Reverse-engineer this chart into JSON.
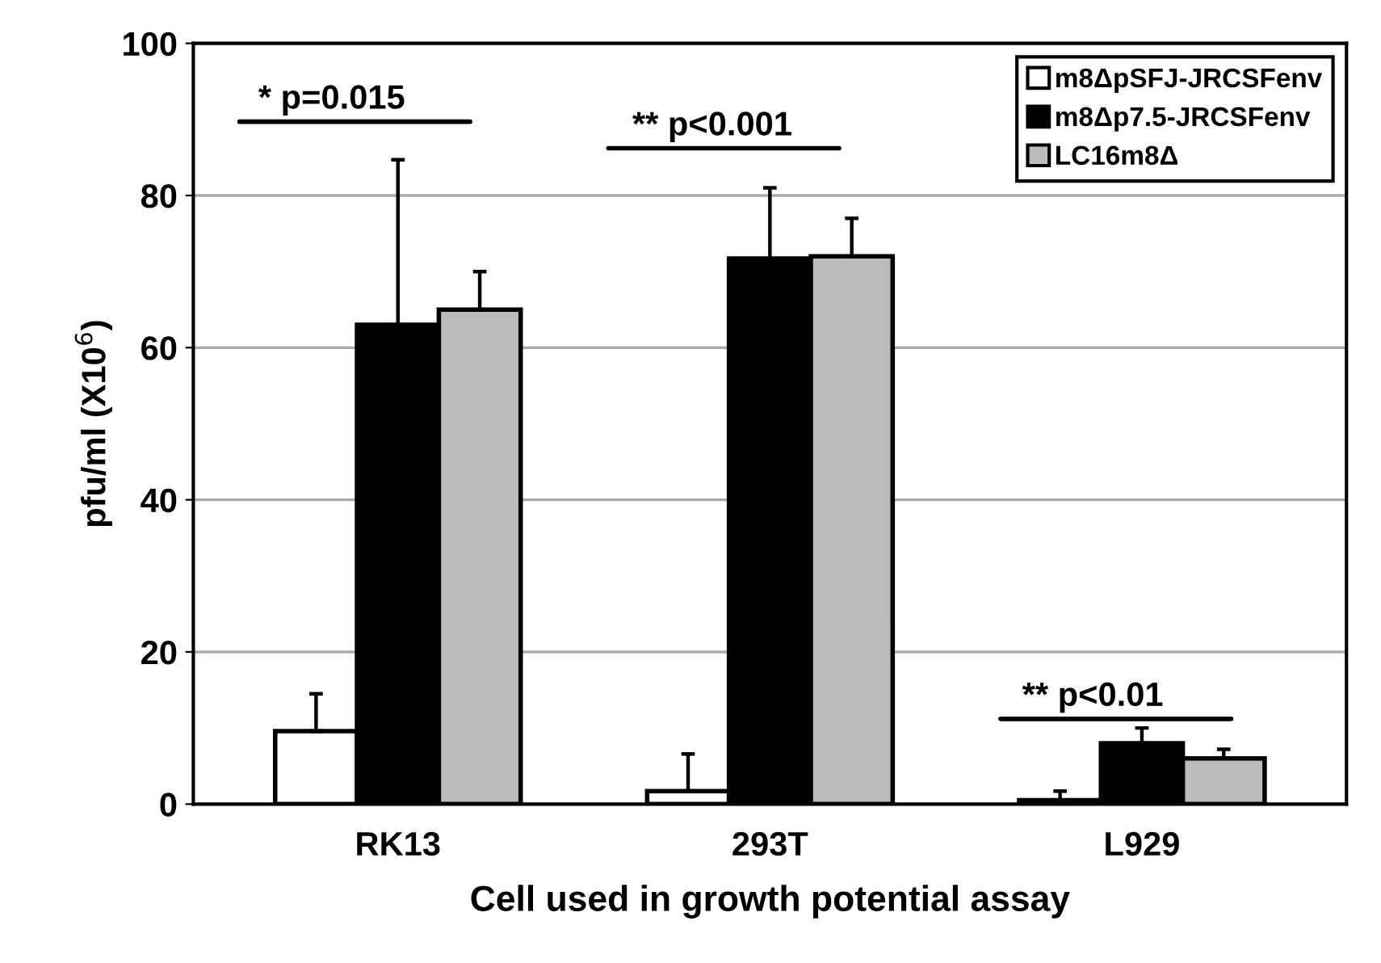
{
  "chart_data": {
    "type": "bar",
    "xlabel": "Cell used in growth potential assay",
    "ylabel": "pfu/ml (X10$^{6}$)",
    "categories": [
      "RK13",
      "293T",
      "L929"
    ],
    "series": [
      {
        "name": "m8ΔpSFJ-JRCSFenv",
        "color": "#ffffff",
        "values": [
          9.6,
          1.7,
          0.5
        ],
        "errors": [
          [
            9.6,
            14.5
          ],
          [
            1.7,
            6.6
          ],
          [
            0.5,
            1.7
          ]
        ]
      },
      {
        "name": "m8Δp7.5-JRCSFenv",
        "color": "#000000",
        "values": [
          63,
          71.7,
          8
        ],
        "errors": [
          [
            63,
            84.7
          ],
          [
            71.7,
            81
          ],
          [
            8,
            10
          ]
        ]
      },
      {
        "name": "LC16m8Δ",
        "color": "#bbbbbb",
        "values": [
          65,
          72,
          6
        ],
        "errors": [
          [
            65,
            70
          ],
          [
            72,
            77
          ],
          [
            6,
            7.2
          ]
        ]
      }
    ],
    "ylim": [
      0,
      100
    ],
    "yticks": [
      0,
      20,
      40,
      60,
      80,
      100
    ],
    "grid": "y",
    "legend": "top right",
    "annotations": [
      "* p=0.015",
      "** p<0.001",
      "** p<0.01"
    ]
  }
}
